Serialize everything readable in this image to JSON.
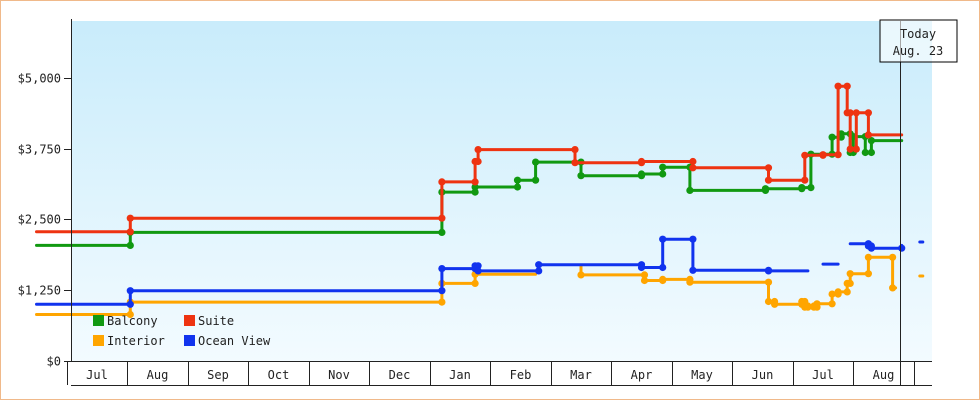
{
  "chart_data": {
    "type": "line",
    "step": true,
    "ylim": [
      0,
      6000
    ],
    "yticks": [
      0,
      1250,
      2500,
      3750,
      5000
    ],
    "ytick_labels": [
      "$0",
      "$1,250",
      "$2,500",
      "$3,750",
      "$5,000"
    ],
    "xlim": [
      0,
      14.65
    ],
    "month_labels": [
      {
        "label": "Jul",
        "x": 1
      },
      {
        "label": "Aug",
        "x": 2
      },
      {
        "label": "Sep",
        "x": 3
      },
      {
        "label": "Oct",
        "x": 4
      },
      {
        "label": "Nov",
        "x": 5
      },
      {
        "label": "Dec",
        "x": 6
      },
      {
        "label": "Jan",
        "x": 7
      },
      {
        "label": "Feb",
        "x": 8
      },
      {
        "label": "Mar",
        "x": 9
      },
      {
        "label": "Apr",
        "x": 10
      },
      {
        "label": "May",
        "x": 11
      },
      {
        "label": "Jun",
        "x": 12
      },
      {
        "label": "Jul",
        "x": 13
      },
      {
        "label": "Aug",
        "x": 14
      }
    ],
    "grid": false,
    "legend_position": "bottom-left",
    "today_marker": {
      "x": 14.28,
      "line1": "Today",
      "line2": "Aug. 23"
    },
    "series": [
      {
        "name": "Balcony",
        "color": "#119911",
        "segments": [
          [
            [
              0.0,
              2040
            ],
            [
              1.55,
              2040
            ],
            [
              1.55,
              2270
            ],
            [
              6.7,
              2270
            ],
            [
              6.7,
              2980
            ],
            [
              7.25,
              2980
            ],
            [
              7.25,
              3070
            ],
            [
              7.95,
              3070
            ],
            [
              7.95,
              3190
            ],
            [
              8.25,
              3190
            ],
            [
              8.25,
              3510
            ],
            [
              9.0,
              3510
            ],
            [
              9.0,
              3270
            ],
            [
              10.0,
              3270
            ],
            [
              10.0,
              3300
            ],
            [
              10.35,
              3300
            ],
            [
              10.35,
              3420
            ],
            [
              10.8,
              3420
            ],
            [
              10.8,
              3010
            ],
            [
              12.05,
              3010
            ],
            [
              12.05,
              3040
            ],
            [
              12.65,
              3040
            ],
            [
              12.65,
              3060
            ],
            [
              12.8,
              3060
            ],
            [
              12.8,
              3650
            ],
            [
              13.15,
              3650
            ],
            [
              13.15,
              3950
            ],
            [
              13.3,
              3950
            ],
            [
              13.3,
              4010
            ],
            [
              13.45,
              4010
            ],
            [
              13.45,
              3680
            ],
            [
              13.5,
              3680
            ],
            [
              13.5,
              3960
            ],
            [
              13.7,
              3960
            ],
            [
              13.7,
              3680
            ],
            [
              13.8,
              3680
            ],
            [
              13.8,
              3890
            ],
            [
              14.3,
              3890
            ]
          ]
        ]
      },
      {
        "name": "Suite",
        "color": "#ee3311",
        "segments": [
          [
            [
              0.0,
              2280
            ],
            [
              1.55,
              2280
            ],
            [
              1.55,
              2520
            ],
            [
              6.7,
              2520
            ],
            [
              6.7,
              3160
            ],
            [
              7.25,
              3160
            ],
            [
              7.25,
              3520
            ],
            [
              7.3,
              3520
            ],
            [
              7.3,
              3730
            ],
            [
              8.9,
              3730
            ],
            [
              8.9,
              3500
            ],
            [
              10.0,
              3500
            ],
            [
              10.0,
              3520
            ],
            [
              10.85,
              3520
            ],
            [
              10.85,
              3410
            ],
            [
              12.1,
              3410
            ],
            [
              12.1,
              3190
            ],
            [
              12.7,
              3190
            ],
            [
              12.7,
              3630
            ],
            [
              13.0,
              3630
            ],
            [
              13.0,
              3640
            ],
            [
              13.25,
              3640
            ],
            [
              13.25,
              4850
            ],
            [
              13.4,
              4850
            ],
            [
              13.4,
              4380
            ],
            [
              13.45,
              4380
            ],
            [
              13.45,
              3740
            ],
            [
              13.55,
              3740
            ],
            [
              13.55,
              4380
            ],
            [
              13.75,
              4380
            ],
            [
              13.75,
              3990
            ],
            [
              14.3,
              3990
            ]
          ]
        ]
      },
      {
        "name": "Interior",
        "color": "#ffa500",
        "segments": [
          [
            [
              0.0,
              820
            ],
            [
              1.55,
              820
            ],
            [
              1.55,
              1040
            ],
            [
              6.7,
              1040
            ],
            [
              6.7,
              1370
            ],
            [
              7.25,
              1370
            ],
            [
              7.25,
              1530
            ],
            [
              8.25,
              1530
            ]
          ],
          [
            [
              9.0,
              1690
            ],
            [
              9.0,
              1520
            ],
            [
              10.05,
              1520
            ],
            [
              10.05,
              1420
            ],
            [
              10.35,
              1420
            ],
            [
              10.35,
              1440
            ],
            [
              10.8,
              1440
            ],
            [
              10.8,
              1390
            ],
            [
              12.1,
              1390
            ],
            [
              12.1,
              1050
            ],
            [
              12.2,
              1050
            ],
            [
              12.2,
              1000
            ],
            [
              12.65,
              1000
            ],
            [
              12.65,
              1050
            ],
            [
              12.7,
              1050
            ],
            [
              12.7,
              950
            ],
            [
              12.75,
              950
            ],
            [
              12.75,
              970
            ],
            [
              12.85,
              970
            ],
            [
              12.85,
              950
            ],
            [
              12.9,
              950
            ],
            [
              12.9,
              1010
            ],
            [
              13.15,
              1010
            ],
            [
              13.15,
              1180
            ],
            [
              13.25,
              1180
            ],
            [
              13.25,
              1220
            ],
            [
              13.4,
              1220
            ],
            [
              13.4,
              1370
            ],
            [
              13.45,
              1370
            ],
            [
              13.45,
              1540
            ],
            [
              13.75,
              1540
            ],
            [
              13.75,
              1830
            ],
            [
              14.15,
              1830
            ],
            [
              14.15,
              1290
            ],
            [
              14.2,
              1290
            ]
          ],
          [
            [
              14.6,
              1500
            ],
            [
              14.65,
              1500
            ]
          ]
        ]
      },
      {
        "name": "Ocean View",
        "color": "#1133ee",
        "segments": [
          [
            [
              0.0,
              1000
            ],
            [
              1.55,
              1000
            ],
            [
              1.55,
              1240
            ],
            [
              6.7,
              1240
            ],
            [
              6.7,
              1630
            ],
            [
              7.25,
              1630
            ],
            [
              7.25,
              1680
            ],
            [
              7.3,
              1680
            ],
            [
              7.3,
              1590
            ],
            [
              8.3,
              1590
            ],
            [
              8.3,
              1700
            ],
            [
              10.0,
              1700
            ],
            [
              10.0,
              1650
            ],
            [
              10.35,
              1650
            ],
            [
              10.35,
              2150
            ],
            [
              10.85,
              2150
            ],
            [
              10.85,
              1600
            ],
            [
              12.1,
              1600
            ],
            [
              12.1,
              1590
            ],
            [
              12.75,
              1590
            ]
          ],
          [
            [
              13.0,
              1710
            ],
            [
              13.25,
              1710
            ]
          ],
          [
            [
              13.45,
              2070
            ],
            [
              13.75,
              2070
            ],
            [
              13.75,
              2030
            ],
            [
              13.8,
              2030
            ],
            [
              13.8,
              1990
            ],
            [
              14.3,
              1990
            ],
            [
              14.3,
              2040
            ]
          ],
          [
            [
              14.6,
              2100
            ],
            [
              14.65,
              2100
            ]
          ]
        ]
      }
    ]
  }
}
